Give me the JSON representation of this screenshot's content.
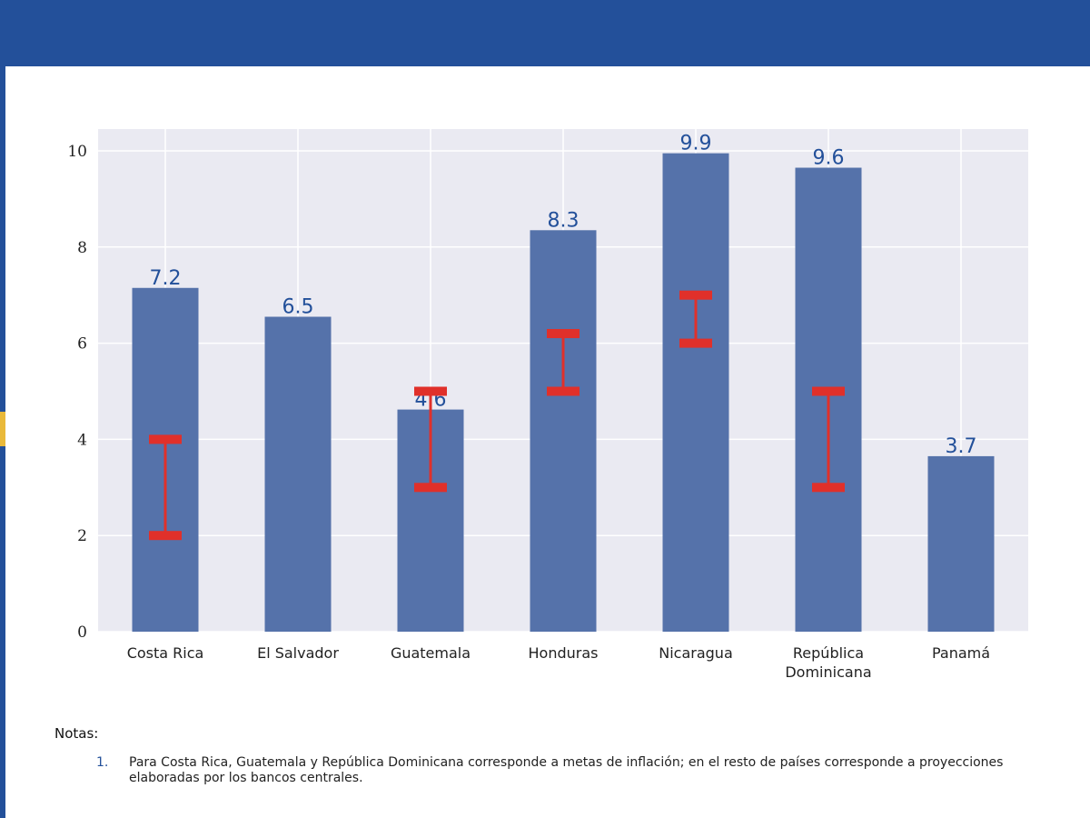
{
  "chart_data": {
    "type": "bar",
    "categories": [
      "Costa Rica",
      "El Salvador",
      "Guatemala",
      "Honduras",
      "Nicaragua",
      "República Dominicana",
      "Panamá"
    ],
    "category_lines": [
      [
        "Costa Rica"
      ],
      [
        "El Salvador"
      ],
      [
        "Guatemala"
      ],
      [
        "Honduras"
      ],
      [
        "Nicaragua"
      ],
      [
        "República",
        "Dominicana"
      ],
      [
        "Panamá"
      ]
    ],
    "values": [
      7.15,
      6.55,
      4.62,
      8.35,
      9.95,
      9.65,
      3.65
    ],
    "data_labels": [
      "7.2",
      "6.5",
      "4.6",
      "8.3",
      "9.9",
      "9.6",
      "3.7"
    ],
    "ranges": [
      [
        2,
        4
      ],
      null,
      [
        3,
        5
      ],
      [
        5,
        6.2
      ],
      [
        6,
        7
      ],
      [
        3,
        5
      ],
      null
    ],
    "ylim": [
      0,
      10.4
    ],
    "yticks": [
      "0",
      "2",
      "4",
      "6",
      "8",
      "10"
    ],
    "grid": true,
    "colors": {
      "bar": "#5572aa",
      "range": "#e0302a",
      "label": "#23509a",
      "plot_bg": "#eaeaf2"
    }
  },
  "notes": {
    "title": "Notas:",
    "items": [
      {
        "num": "1.",
        "text": "Para Costa Rica, Guatemala y República Dominicana corresponde a metas de inflación; en el resto de países corresponde a proyecciones elaboradas por los bancos centrales."
      }
    ]
  }
}
